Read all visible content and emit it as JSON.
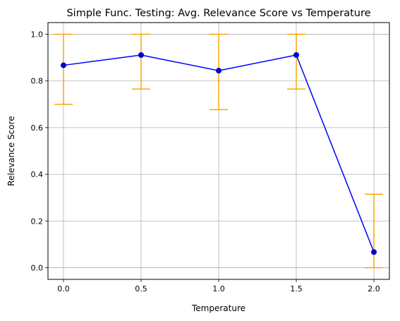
{
  "chart_data": {
    "type": "line",
    "title": "Simple Func. Testing: Avg. Relevance Score vs Temperature",
    "xlabel": "Temperature",
    "ylabel": "Relevance Score",
    "xlim": [
      -0.1,
      2.1
    ],
    "ylim": [
      -0.05,
      1.05
    ],
    "x_ticks": [
      "0.0",
      "0.5",
      "1.0",
      "1.5",
      "2.0"
    ],
    "y_ticks": [
      "0.0",
      "0.2",
      "0.4",
      "0.6",
      "0.8",
      "1.0"
    ],
    "grid": true,
    "series": [
      {
        "x": [
          0.0,
          0.5,
          1.0,
          1.5,
          2.0
        ],
        "values": [
          0.867,
          0.911,
          0.844,
          0.911,
          0.067
        ],
        "error_lower": [
          0.7,
          0.765,
          0.677,
          0.765,
          0.0
        ],
        "error_upper": [
          1.0,
          1.0,
          1.0,
          1.0,
          0.315
        ],
        "line_color": "#0000ff",
        "marker_color": "#0000cc",
        "error_color": "#ffa500"
      }
    ]
  }
}
